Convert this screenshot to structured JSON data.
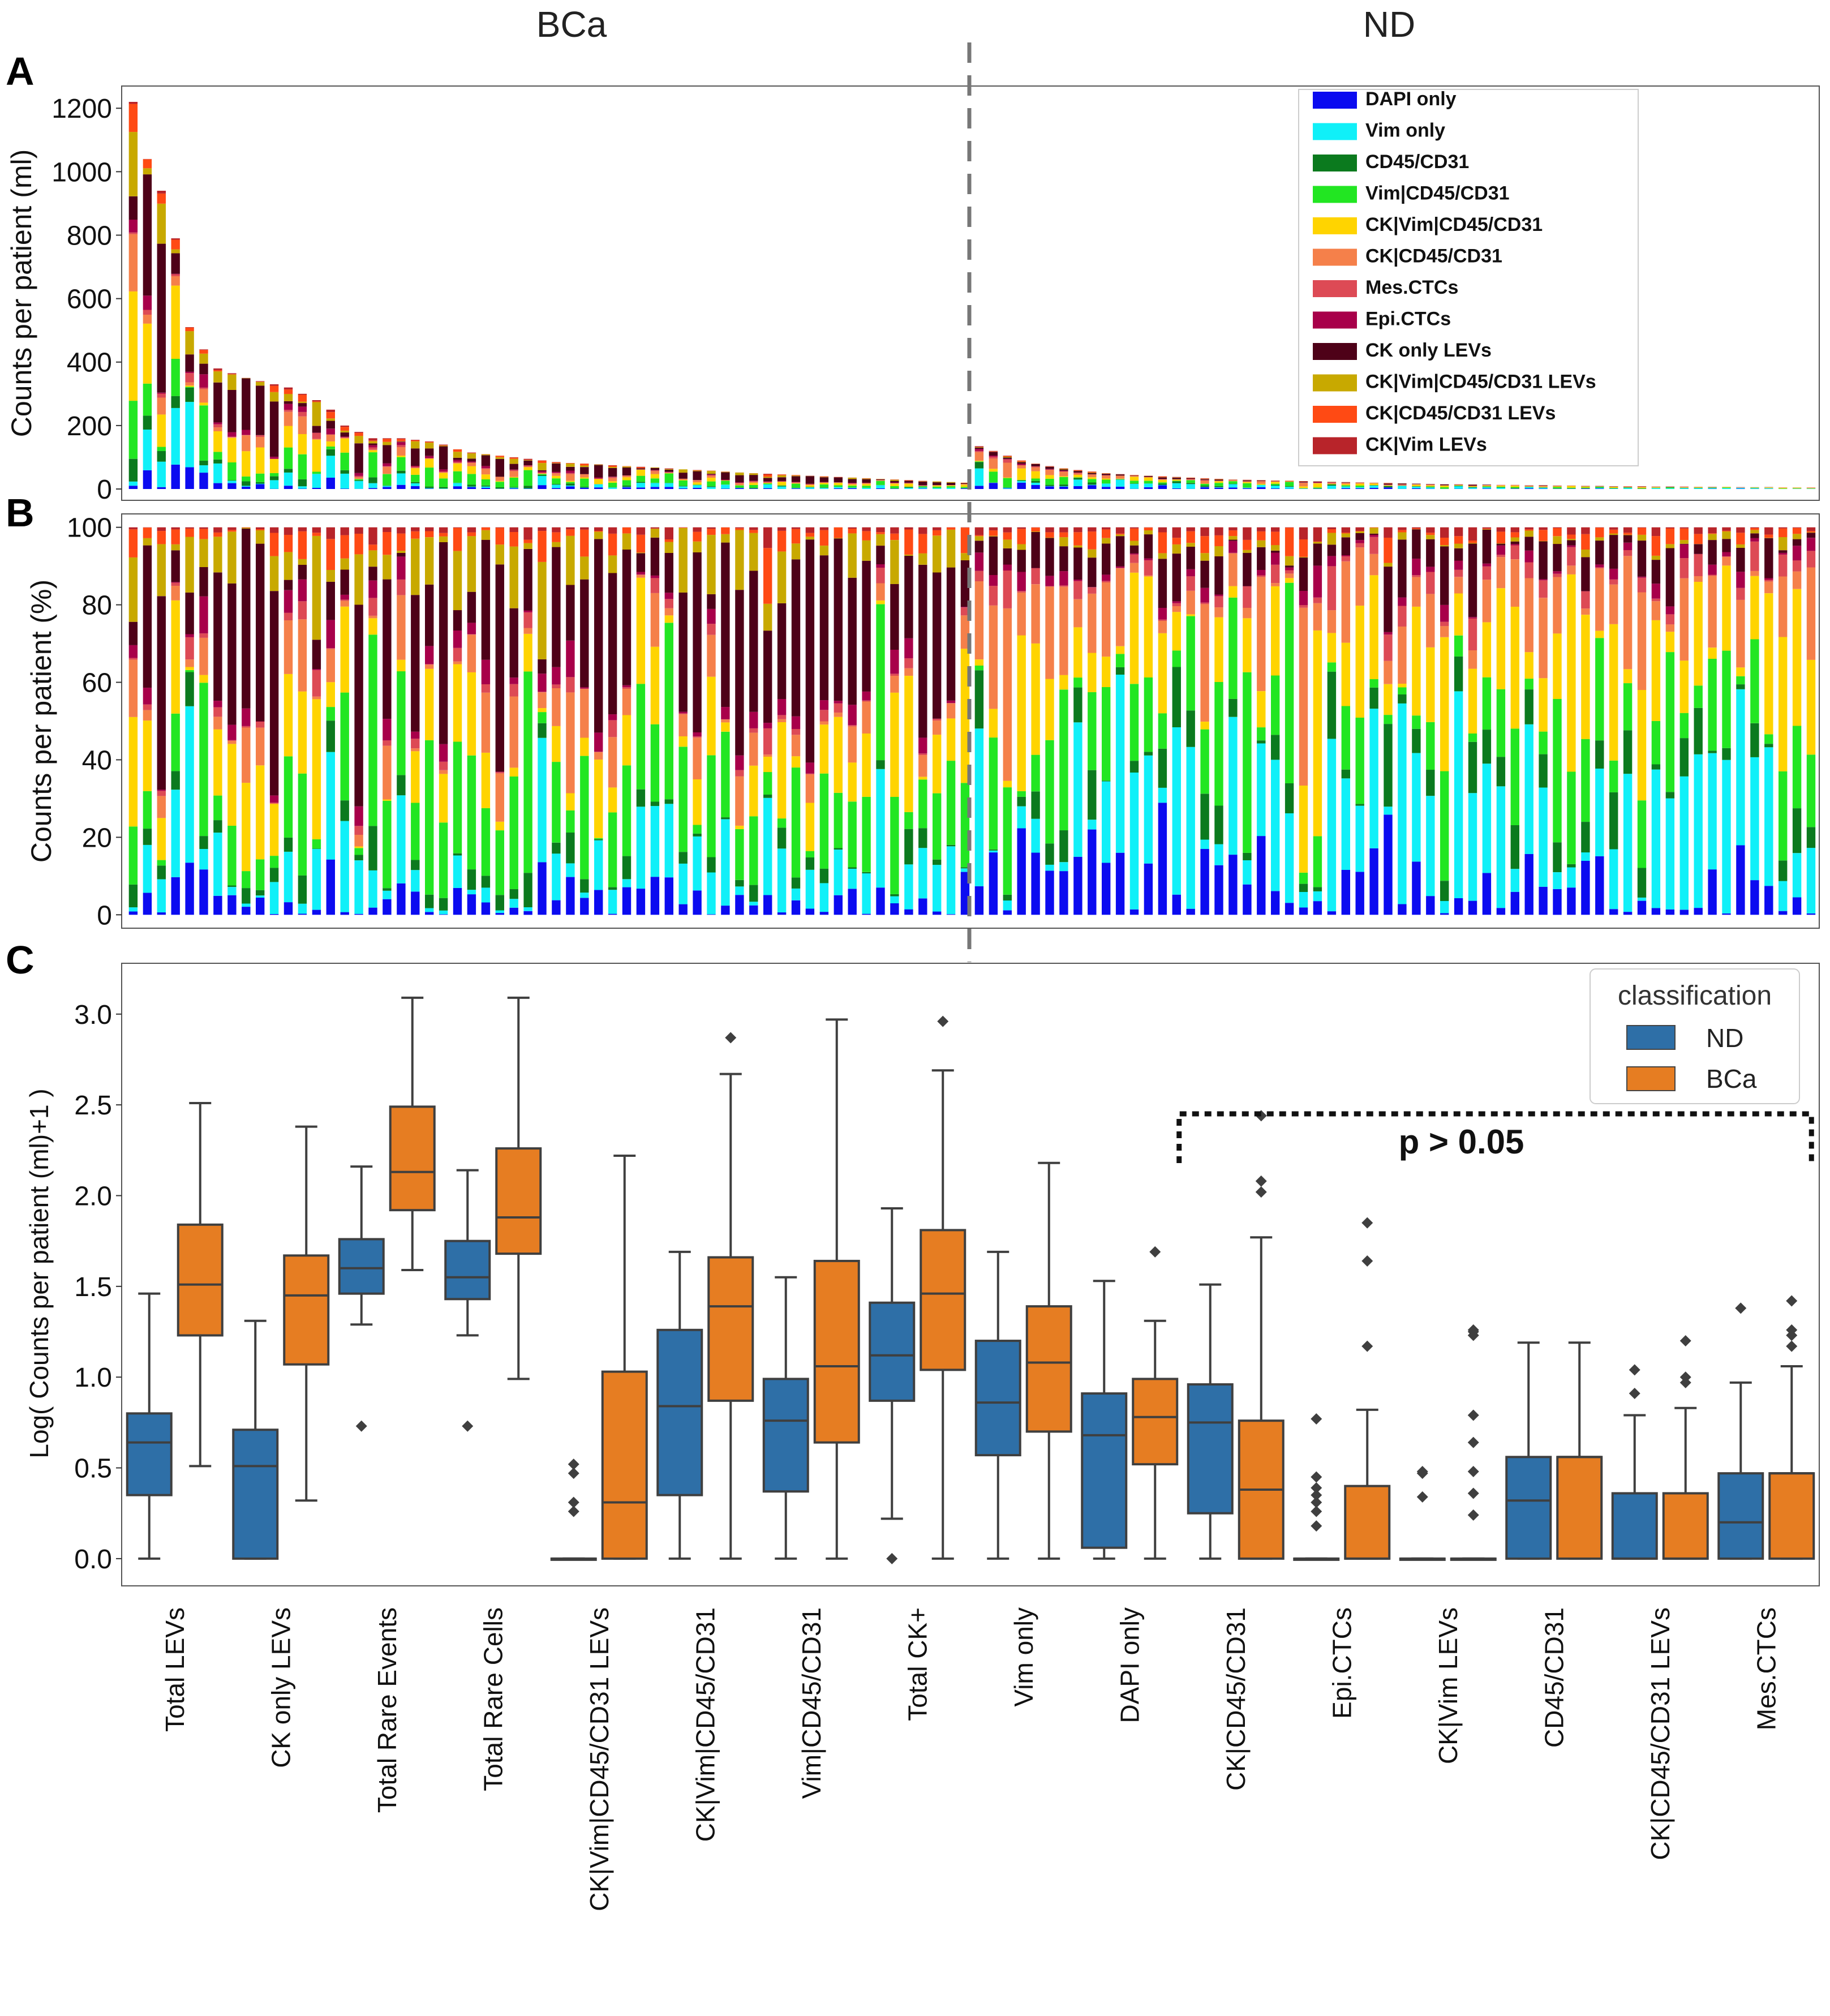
{
  "group_labels": {
    "left": "BCa",
    "right": "ND"
  },
  "panels": {
    "a": "A",
    "b": "B",
    "c": "C"
  },
  "colors": {
    "DAPI only": "#0b0bf0",
    "Vim only": "#10f0f8",
    "CD45/CD31": "#0b7a1e",
    "Vim|CD45/CD31": "#22e622",
    "CK|Vim|CD45/CD31": "#ffd400",
    "CK|CD45/CD31": "#f5804a",
    "Mes.CTCs": "#dd4a55",
    "Epi.CTCs": "#a8004a",
    "CK only LEVs": "#4e0118",
    "CK|Vim|CD45/CD31 LEVs": "#c8a900",
    "CK|CD45/CD31 LEVs": "#ff4a14",
    "CK|Vim LEVs": "#b8242a",
    "ND": "#2e6fa7",
    "BCa": "#e67d22"
  },
  "chart_data": [
    {
      "type": "bar",
      "stacked": true,
      "panel": "A",
      "ylabel": "Counts per patient (ml)",
      "ylim": [
        0,
        1270
      ],
      "yticks": [
        0,
        200,
        400,
        600,
        800,
        1000,
        1200
      ],
      "n_bca": 60,
      "n_nd": 60,
      "series": [
        "DAPI only",
        "Vim only",
        "CD45/CD31",
        "Vim|CD45/CD31",
        "CK|Vim|CD45/CD31",
        "CK|CD45/CD31",
        "Mes.CTCs",
        "Epi.CTCs",
        "CK only LEVs",
        "CK|Vim|CD45/CD31 LEVs",
        "CK|CD45/CD31 LEVs",
        "CK|Vim LEVs"
      ],
      "totals_bca": [
        1220,
        1040,
        940,
        790,
        510,
        440,
        380,
        365,
        350,
        340,
        330,
        320,
        300,
        280,
        250,
        200,
        180,
        160,
        160,
        160,
        155,
        150,
        140,
        125,
        115,
        110,
        105,
        100,
        95,
        90,
        85,
        82,
        80,
        78,
        75,
        72,
        70,
        68,
        65,
        62,
        60,
        58,
        55,
        52,
        50,
        48,
        46,
        44,
        42,
        40,
        38,
        36,
        34,
        32,
        30,
        28,
        26,
        24,
        22,
        20
      ],
      "totals_nd": [
        135,
        120,
        105,
        90,
        80,
        72,
        65,
        60,
        55,
        50,
        47,
        44,
        42,
        40,
        38,
        36,
        34,
        32,
        30,
        29,
        28,
        27,
        26,
        25,
        24,
        23,
        22,
        21,
        20,
        19,
        18,
        17,
        16,
        15,
        15,
        14,
        14,
        13,
        13,
        12,
        12,
        11,
        11,
        10,
        10,
        9,
        9,
        9,
        8,
        8,
        8,
        7,
        7,
        7,
        6,
        6,
        6,
        5,
        5,
        5
      ]
    },
    {
      "type": "bar",
      "stacked": true,
      "normalized": true,
      "panel": "B",
      "ylabel": "Counts per patient (%)",
      "ylim": [
        -2,
        102
      ],
      "yticks": [
        0,
        20,
        40,
        60,
        80,
        100
      ]
    },
    {
      "type": "box",
      "panel": "C",
      "ylabel": "Log( Counts per patient (ml)+1 )",
      "ylim": [
        -0.15,
        3.28
      ],
      "yticks": [
        0.0,
        0.5,
        1.0,
        1.5,
        2.0,
        2.5,
        3.0
      ],
      "legend_title": "classification",
      "hue_order": [
        "ND",
        "BCa"
      ],
      "categories": [
        "Total LEVs",
        "CK only LEVs",
        "Total Rare Events",
        "Total Rare Cells",
        "CK|Vim|CD45/CD31 LEVs",
        "CK|Vim|CD45/CD31",
        "Vim|CD45/CD31",
        "Total CK+",
        "Vim only",
        "DAPI only",
        "CK|CD45/CD31",
        "Epi.CTCs",
        "CK|Vim LEVs",
        "CD45/CD31",
        "CK|CD45/CD31 LEVs",
        "Mes.CTCs"
      ],
      "boxes": [
        {
          "cat": "Total LEVs",
          "group": "ND",
          "whislo": 0.0,
          "q1": 0.35,
          "med": 0.64,
          "q3": 0.8,
          "whishi": 1.46,
          "fliers": []
        },
        {
          "cat": "Total LEVs",
          "group": "BCa",
          "whislo": 0.51,
          "q1": 1.23,
          "med": 1.51,
          "q3": 1.84,
          "whishi": 2.51,
          "fliers": []
        },
        {
          "cat": "CK only LEVs",
          "group": "ND",
          "whislo": 0.0,
          "q1": 0.0,
          "med": 0.51,
          "q3": 0.71,
          "whishi": 1.31,
          "fliers": []
        },
        {
          "cat": "CK only LEVs",
          "group": "BCa",
          "whislo": 0.32,
          "q1": 1.07,
          "med": 1.45,
          "q3": 1.67,
          "whishi": 2.38,
          "fliers": []
        },
        {
          "cat": "Total Rare Events",
          "group": "ND",
          "whislo": 1.29,
          "q1": 1.46,
          "med": 1.6,
          "q3": 1.76,
          "whishi": 2.16,
          "fliers": [
            0.73
          ]
        },
        {
          "cat": "Total Rare Events",
          "group": "BCa",
          "whislo": 1.59,
          "q1": 1.92,
          "med": 2.13,
          "q3": 2.49,
          "whishi": 3.09,
          "fliers": []
        },
        {
          "cat": "Total Rare Cells",
          "group": "ND",
          "whislo": 1.23,
          "q1": 1.43,
          "med": 1.55,
          "q3": 1.75,
          "whishi": 2.14,
          "fliers": [
            0.73
          ]
        },
        {
          "cat": "Total Rare Cells",
          "group": "BCa",
          "whislo": 0.99,
          "q1": 1.68,
          "med": 1.88,
          "q3": 2.26,
          "whishi": 3.09,
          "fliers": []
        },
        {
          "cat": "CK|Vim|CD45/CD31 LEVs",
          "group": "ND",
          "whislo": 0.0,
          "q1": 0.0,
          "med": 0.0,
          "q3": 0.0,
          "whishi": 0.0,
          "fliers": [
            0.26,
            0.31,
            0.47,
            0.52
          ]
        },
        {
          "cat": "CK|Vim|CD45/CD31 LEVs",
          "group": "BCa",
          "whislo": 0.0,
          "q1": 0.0,
          "med": 0.31,
          "q3": 1.03,
          "whishi": 2.22,
          "fliers": []
        },
        {
          "cat": "CK|Vim|CD45/CD31",
          "group": "ND",
          "whislo": 0.0,
          "q1": 0.35,
          "med": 0.84,
          "q3": 1.26,
          "whishi": 1.69,
          "fliers": []
        },
        {
          "cat": "CK|Vim|CD45/CD31",
          "group": "BCa",
          "whislo": 0.0,
          "q1": 0.87,
          "med": 1.39,
          "q3": 1.66,
          "whishi": 2.67,
          "fliers": [
            2.87
          ]
        },
        {
          "cat": "Vim|CD45/CD31",
          "group": "ND",
          "whislo": 0.0,
          "q1": 0.37,
          "med": 0.76,
          "q3": 0.99,
          "whishi": 1.55,
          "fliers": []
        },
        {
          "cat": "Vim|CD45/CD31",
          "group": "BCa",
          "whislo": 0.0,
          "q1": 0.64,
          "med": 1.06,
          "q3": 1.64,
          "whishi": 2.97,
          "fliers": []
        },
        {
          "cat": "Total CK+",
          "group": "ND",
          "whislo": 0.22,
          "q1": 0.87,
          "med": 1.12,
          "q3": 1.41,
          "whishi": 1.93,
          "fliers": [
            0.0
          ]
        },
        {
          "cat": "Total CK+",
          "group": "BCa",
          "whislo": 0.0,
          "q1": 1.04,
          "med": 1.46,
          "q3": 1.81,
          "whishi": 2.69,
          "fliers": [
            2.96
          ]
        },
        {
          "cat": "Vim only",
          "group": "ND",
          "whislo": 0.0,
          "q1": 0.57,
          "med": 0.86,
          "q3": 1.2,
          "whishi": 1.69,
          "fliers": []
        },
        {
          "cat": "Vim only",
          "group": "BCa",
          "whislo": 0.0,
          "q1": 0.7,
          "med": 1.08,
          "q3": 1.39,
          "whishi": 2.18,
          "fliers": []
        },
        {
          "cat": "DAPI only",
          "group": "ND",
          "whislo": 0.0,
          "q1": 0.06,
          "med": 0.68,
          "q3": 0.91,
          "whishi": 1.53,
          "fliers": []
        },
        {
          "cat": "DAPI only",
          "group": "BCa",
          "whislo": 0.0,
          "q1": 0.52,
          "med": 0.78,
          "q3": 0.99,
          "whishi": 1.31,
          "fliers": [
            1.69
          ]
        },
        {
          "cat": "CK|CD45/CD31",
          "group": "ND",
          "whislo": 0.0,
          "q1": 0.25,
          "med": 0.75,
          "q3": 0.96,
          "whishi": 1.51,
          "fliers": []
        },
        {
          "cat": "CK|CD45/CD31",
          "group": "BCa",
          "whislo": 0.0,
          "q1": 0.0,
          "med": 0.38,
          "q3": 0.76,
          "whishi": 1.77,
          "fliers": [
            2.02,
            2.08,
            2.44
          ]
        },
        {
          "cat": "Epi.CTCs",
          "group": "ND",
          "whislo": 0.0,
          "q1": 0.0,
          "med": 0.0,
          "q3": 0.0,
          "whishi": 0.0,
          "fliers": [
            0.18,
            0.26,
            0.31,
            0.35,
            0.39,
            0.45,
            0.77
          ]
        },
        {
          "cat": "Epi.CTCs",
          "group": "BCa",
          "whislo": 0.0,
          "q1": 0.0,
          "med": 0.0,
          "q3": 0.4,
          "whishi": 0.82,
          "fliers": [
            1.17,
            1.64,
            1.85
          ]
        },
        {
          "cat": "CK|Vim LEVs",
          "group": "ND",
          "whislo": 0.0,
          "q1": 0.0,
          "med": 0.0,
          "q3": 0.0,
          "whishi": 0.0,
          "fliers": [
            0.34,
            0.47,
            0.48
          ]
        },
        {
          "cat": "CK|Vim LEVs",
          "group": "BCa",
          "whislo": 0.0,
          "q1": 0.0,
          "med": 0.0,
          "q3": 0.0,
          "whishi": 0.0,
          "fliers": [
            0.24,
            0.36,
            0.48,
            0.64,
            0.79,
            1.23,
            1.25,
            1.26
          ]
        },
        {
          "cat": "CD45/CD31",
          "group": "ND",
          "whislo": 0.0,
          "q1": 0.0,
          "med": 0.32,
          "q3": 0.56,
          "whishi": 1.19,
          "fliers": []
        },
        {
          "cat": "CD45/CD31",
          "group": "BCa",
          "whislo": 0.0,
          "q1": 0.0,
          "med": 0.56,
          "q3": 0.56,
          "whishi": 1.19,
          "fliers": []
        },
        {
          "cat": "CK|CD45/CD31 LEVs",
          "group": "ND",
          "whislo": 0.0,
          "q1": 0.0,
          "med": 0.0,
          "q3": 0.36,
          "whishi": 0.79,
          "fliers": [
            0.91,
            1.04
          ]
        },
        {
          "cat": "CK|CD45/CD31 LEVs",
          "group": "BCa",
          "whislo": 0.0,
          "q1": 0.0,
          "med": 0.0,
          "q3": 0.36,
          "whishi": 0.83,
          "fliers": [
            0.97,
            1.0,
            1.2
          ]
        },
        {
          "cat": "Mes.CTCs",
          "group": "ND",
          "whislo": 0.0,
          "q1": 0.0,
          "med": 0.2,
          "q3": 0.47,
          "whishi": 0.97,
          "fliers": [
            1.38
          ]
        },
        {
          "cat": "Mes.CTCs",
          "group": "BCa",
          "whislo": 0.0,
          "q1": 0.0,
          "med": 0.47,
          "q3": 0.47,
          "whishi": 1.06,
          "fliers": [
            1.17,
            1.23,
            1.26,
            1.42
          ]
        }
      ],
      "annotation": {
        "text": "p > 0.05",
        "from_category": "CK|CD45/CD31",
        "to_category": "Mes.CTCs"
      }
    }
  ]
}
